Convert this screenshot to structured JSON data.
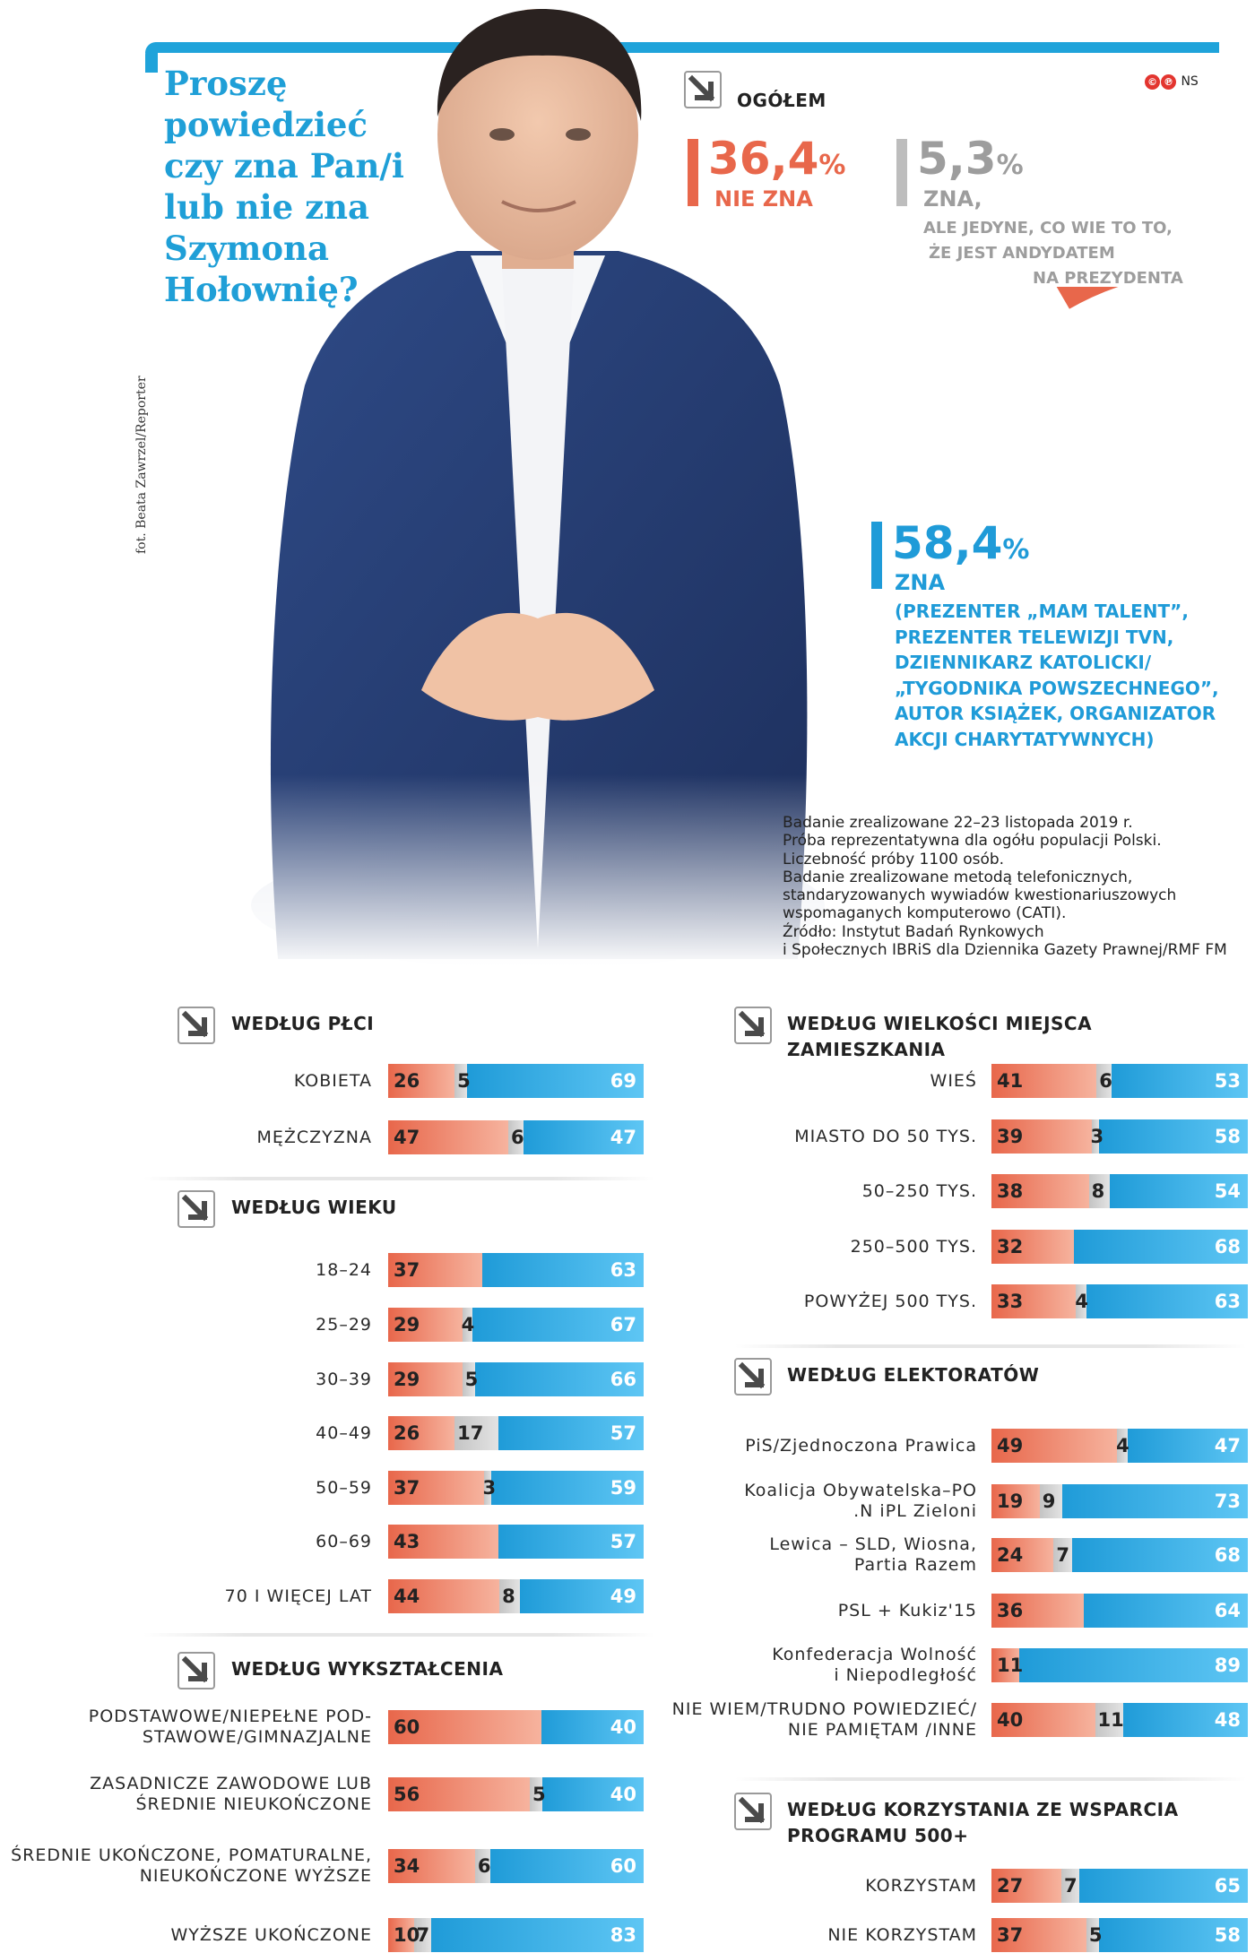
{
  "title": "Proszę powiedzieć czy zna Pan/i lub nie zna Szymona Hołownię?",
  "photo_credit": "fot. Beata Zawrzel/Reporter",
  "publisher_mark": "NS",
  "overall": {
    "heading": "OGÓŁEM",
    "nie_zna": {
      "value": "36,4",
      "unit": "%",
      "label": "NIE ZNA"
    },
    "zna_andydat": {
      "value": "5,3",
      "unit": "%",
      "label": "ZNA,",
      "sub1": "ALE JEDYNE, CO WIE TO TO,",
      "sub2": "ŻE JEST ANDYDATEM",
      "sub3": "NA PREZYDENTA"
    },
    "zna": {
      "value": "58,4",
      "unit": "%",
      "label": "ZNA",
      "desc": [
        "(PREZENTER „MAM TALENT”,",
        "PREZENTER TELEWIZJI TVN,",
        "DZIENNIKARZ KATOLICKI/",
        "„TYGODNIKA POWSZECHNEGO”,",
        "AUTOR KSIĄŻEK, ORGANIZATOR",
        "AKCJI CHARYTATYWNYCH)"
      ]
    }
  },
  "note": [
    "Badanie zrealizowane 22–23 listopada 2019 r.",
    "Próba reprezentatywna dla ogółu populacji Polski.",
    "Liczebność próby 1100 osób.",
    "Badanie zrealizowane metodą telefonicznych,",
    "standaryzowanych wywiadów kwestionariuszowych",
    "wspomaganych komputerowo (CATI).",
    "Źródło: Instytut Badań Rynkowych",
    "i Społecznych IBRiS dla Dziennika Gazety Prawnej/RMF FM"
  ],
  "colors": {
    "nie_zna": "#e8674b",
    "andydat": "#c4c4c4",
    "zna": "#1f9bd8",
    "title": "#1f9fd7"
  },
  "icons": [
    "arrow-down-right-icon"
  ],
  "chart_data": [
    {
      "type": "pie",
      "title": "OGÓŁEM",
      "categories": [
        "NIE ZNA",
        "ZNA, ALE JEDYNE, CO WIE TO TO, ŻE JEST ANDYDATEM NA PREZYDENTA",
        "ZNA"
      ],
      "values": [
        36.4,
        5.3,
        58.4
      ]
    },
    {
      "type": "bar",
      "title": "WEDŁUG PŁCI",
      "categories": [
        "KOBIETA",
        "MĘŻCZYZNA"
      ],
      "series": [
        {
          "values": [
            26,
            47
          ]
        },
        {
          "values": [
            5,
            6
          ]
        },
        {
          "values": [
            69,
            47
          ]
        }
      ]
    },
    {
      "type": "bar",
      "title": "WEDŁUG WIEKU",
      "categories": [
        "18–24",
        "25–29",
        "30–39",
        "40–49",
        "50–59",
        "60–69",
        "70 I WIĘCEJ LAT"
      ],
      "series": [
        {
          "values": [
            37,
            29,
            29,
            26,
            37,
            43,
            44
          ]
        },
        {
          "values": [
            0,
            4,
            5,
            17,
            3,
            0,
            8
          ]
        },
        {
          "values": [
            63,
            67,
            66,
            57,
            59,
            57,
            49
          ]
        }
      ]
    },
    {
      "type": "bar",
      "title": "WEDŁUG WYKSZTAŁCENIA",
      "categories": [
        "PODSTAWOWE/NIEPEŁNE POD-|STAWOWE/GIMNAZJALNE",
        "ZASADNICZE ZAWODOWE LUB|ŚREDNIE NIEUKOŃCZONE",
        "ŚREDNIE UKOŃCZONE, POMATURALNE,|NIEUKOŃCZONE WYŻSZE",
        "WYŻSZE UKOŃCZONE"
      ],
      "series": [
        {
          "values": [
            60,
            56,
            34,
            10
          ]
        },
        {
          "values": [
            0,
            5,
            6,
            7
          ]
        },
        {
          "values": [
            40,
            40,
            60,
            83
          ]
        }
      ]
    },
    {
      "type": "bar",
      "title": "WEDŁUG WIELKOŚCI MIEJSCA ZAMIESZKANIA",
      "categories": [
        "WIEŚ",
        "MIASTO DO 50 TYS.",
        "50–250 TYS.",
        "250–500 TYS.",
        "POWYŻEJ 500 TYS."
      ],
      "series": [
        {
          "values": [
            41,
            39,
            38,
            32,
            33
          ]
        },
        {
          "values": [
            6,
            3,
            8,
            0,
            4
          ]
        },
        {
          "values": [
            53,
            58,
            54,
            68,
            63
          ]
        }
      ]
    },
    {
      "type": "bar",
      "title": "WEDŁUG ELEKTORATÓW",
      "categories": [
        "PiS/Zjednoczona Prawica",
        "Koalicja Obywatelska–PO|.N iPL Zieloni",
        "Lewica – SLD, Wiosna,|Partia Razem",
        "PSL + Kukiz'15",
        "Konfederacja Wolność|i Niepodległość",
        "NIE WIEM/TRUDNO POWIEDZIEĆ/|NIE PAMIĘTAM /INNE"
      ],
      "series": [
        {
          "values": [
            49,
            19,
            24,
            36,
            11,
            40
          ]
        },
        {
          "values": [
            4,
            9,
            7,
            0,
            0,
            11
          ]
        },
        {
          "values": [
            47,
            73,
            68,
            64,
            89,
            48
          ]
        }
      ]
    },
    {
      "type": "bar",
      "title": "WEDŁUG KORZYSTANIA ZE WSPARCIA|PROGRAMU 500+",
      "categories": [
        "KORZYSTAM",
        "NIE KORZYSTAM"
      ],
      "series": [
        {
          "values": [
            27,
            37
          ]
        },
        {
          "values": [
            7,
            5
          ]
        },
        {
          "values": [
            65,
            58
          ]
        }
      ]
    }
  ]
}
